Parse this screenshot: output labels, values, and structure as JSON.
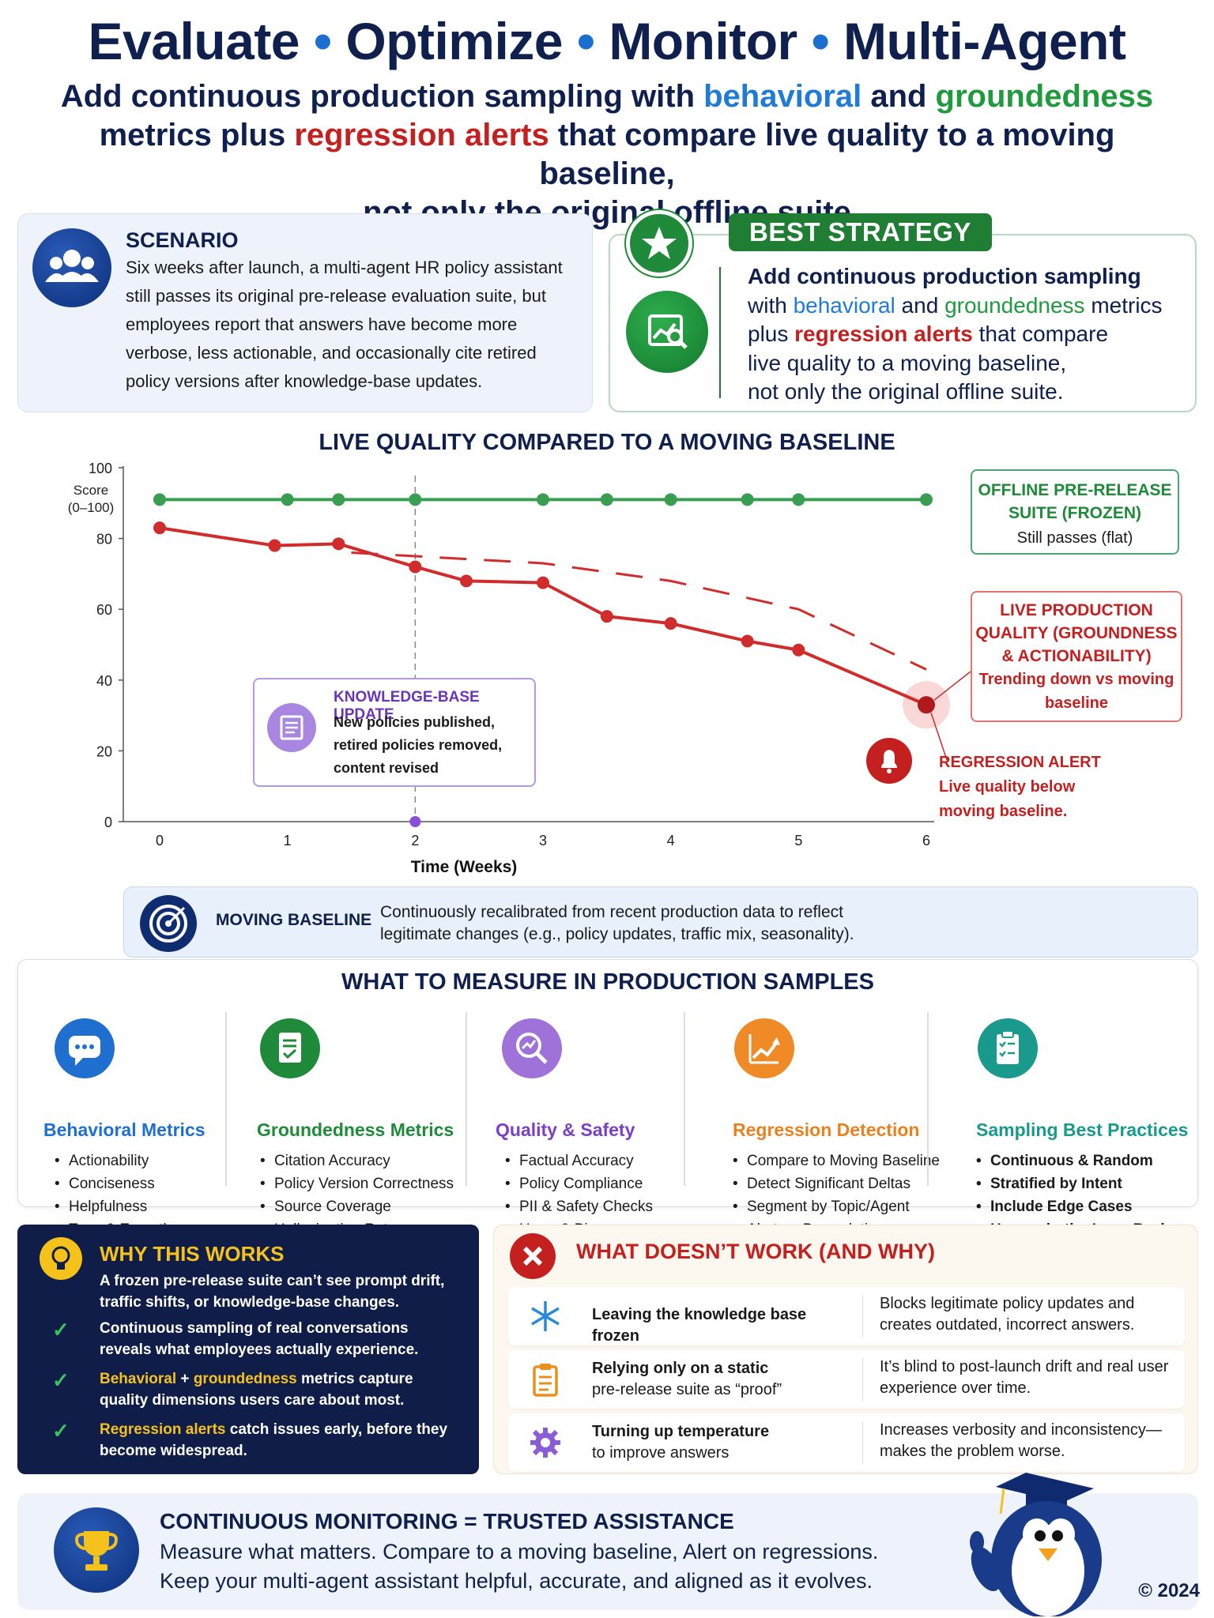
{
  "header": {
    "title_parts": [
      "Evaluate",
      "Optimize",
      "Monitor",
      "Multi-Agent"
    ],
    "title_sep": "•",
    "subtitle": {
      "p1": "Add continuous production sampling with ",
      "behavioral": "behavioral",
      "p2": " and ",
      "groundedness": "groundedness",
      "p3": "metrics plus ",
      "regression_alerts": "regression alerts",
      "p4": " that compare live quality to a moving baseline,",
      "p5": "not only the original offline suite"
    }
  },
  "scenario": {
    "heading": "SCENARIO",
    "icon": "users-icon",
    "body": "Six weeks after launch, a multi-agent HR policy assistant still passes its original pre-release evaluation suite, but employees report that answers have become more verbose, less actionable, and occasionally cite retired policy versions after knowledge-base updates."
  },
  "best_strategy": {
    "badge": "BEST STRATEGY",
    "star_icon": "star-icon",
    "icon": "chart-search-icon",
    "l1": "Add continuous production sampling",
    "l2a": "with ",
    "l2b": "behavioral",
    "l2c": " and ",
    "l2d": "groundedness",
    "l2e": " metrics",
    "l3a": "plus ",
    "l3b": "regression alerts",
    "l3c": " that compare",
    "l4": "live quality to a moving baseline,",
    "l5": "not only the original offline suite."
  },
  "chart_data": {
    "type": "line",
    "title": "LIVE QUALITY COMPARED TO A MOVING BASELINE",
    "xlabel": "Time (Weeks)",
    "ylabel": "Score (0–100)",
    "ylim": [
      0,
      100
    ],
    "xlim": [
      0,
      6
    ],
    "xticks": [
      0,
      1,
      2,
      3,
      4,
      5,
      6
    ],
    "yticks": [
      0,
      20,
      40,
      60,
      80,
      100
    ],
    "grid": false,
    "series": [
      {
        "name": "OFFLINE PRE-RELEASE SUITE (FROZEN)",
        "style": "solid",
        "color": "#3a9e52",
        "x": [
          0,
          1,
          1.4,
          2,
          3,
          3.5,
          4,
          4.6,
          5,
          6
        ],
        "y": [
          91,
          91,
          91,
          91,
          91,
          91,
          91,
          91,
          91,
          91
        ]
      },
      {
        "name": "LIVE PRODUCTION QUALITY (GROUNDNESS & ACTIONABILITY)",
        "style": "solid",
        "color": "#d12c2c",
        "x": [
          0,
          0.9,
          1.4,
          2,
          2.4,
          3,
          3.5,
          4,
          4.6,
          5,
          6
        ],
        "y": [
          83,
          78,
          78.5,
          72,
          68,
          67.5,
          58,
          56,
          51,
          48.5,
          33
        ]
      },
      {
        "name": "MOVING BASELINE",
        "style": "dashed",
        "color": "#d12c2c",
        "x": [
          1.5,
          3,
          4,
          5,
          6
        ],
        "y": [
          76,
          73,
          68,
          60,
          43
        ]
      }
    ],
    "annotations": {
      "offline": {
        "heading": "OFFLINE PRE-RELEASE SUITE (FROZEN)",
        "text": "Still passes (flat)"
      },
      "live": {
        "heading": "LIVE PRODUCTION QUALITY (GROUNDNESS & ACTIONABILITY)",
        "text": "Trending down vs moving baseline"
      },
      "kb": {
        "heading": "KNOWLEDGE-BASE UPDATE",
        "text": "New policies published, retired policies removed, content revised",
        "at_week": 2
      },
      "alert": {
        "heading": "REGRESSION ALERT",
        "text": "Live quality below moving baseline."
      }
    }
  },
  "moving_baseline": {
    "label": "MOVING BASELINE",
    "icon": "target-icon",
    "text": "Continuously recalibrated from recent production data to reflect legitimate changes (e.g., policy updates, traffic mix, seasonality)."
  },
  "measure": {
    "heading": "WHAT TO MEASURE IN PRODUCTION SAMPLES",
    "columns": [
      {
        "title": "Behavioral Metrics",
        "color": "#1f6fd1",
        "icon": "chat-bubble-icon",
        "items": [
          "Actionability",
          "Conciseness",
          "Helpfulness",
          "Tone & Empathy"
        ]
      },
      {
        "title": "Groundedness Metrics",
        "color": "#1f8a3a",
        "icon": "document-check-icon",
        "items": [
          "Citation Accuracy",
          "Policy Version Correctness",
          "Source Coverage",
          "Hallucination Rate"
        ]
      },
      {
        "title": "Quality & Safety",
        "color": "#7a3fc4",
        "icon": "magnifier-chart-icon",
        "items": [
          "Factual Accuracy",
          "Policy Compliance",
          "PII & Safety Checks",
          "Harm & Bias"
        ]
      },
      {
        "title": "Regression Detection",
        "color": "#e8821e",
        "icon": "trend-up-icon",
        "items": [
          "Compare to Moving Baseline",
          "Detect Significant Deltas",
          "Segment by Topic/Agent",
          "Alert on Degradation"
        ]
      },
      {
        "title": "Sampling Best Practices",
        "color": "#199a8c",
        "icon": "clipboard-checklist-icon",
        "items": [
          "Continuous & Random",
          "Stratified by Intent",
          "Include Edge Cases",
          "Human-in-the-Loop Review"
        ]
      }
    ]
  },
  "why": {
    "heading": "WHY THIS WORKS",
    "icon": "lightbulb-icon",
    "intro": "A frozen pre-release suite can’t see prompt drift, traffic shifts, or knowledge-base changes.",
    "r1": "Continuous sampling of real conversations reveals what employees actually experience.",
    "r2a": "Behavioral",
    "r2b": " + ",
    "r2c": "groundedness",
    "r2d": " metrics capture quality dimensions users care about most.",
    "r3a": "Regression alerts",
    "r3b": " catch issues early, before they become widespread."
  },
  "dont": {
    "heading": "WHAT DOESN’T WORK (AND WHY)",
    "icon": "x-circle-icon",
    "rows": [
      {
        "icon": "snowflake-icon",
        "left_b": "Leaving the knowledge base frozen",
        "left_n": "",
        "right": "Blocks legitimate policy updates and creates outdated, incorrect answers."
      },
      {
        "icon": "clipboard-icon",
        "left_b": "Relying only on a static",
        "left_n": "pre-release suite as “proof”",
        "right": "It’s blind to post-launch drift and real user experience over time."
      },
      {
        "icon": "gear-icon",
        "left_b": "Turning up temperature",
        "left_n": "to improve answers",
        "right": "Increases verbosity and inconsistency—makes the problem worse."
      }
    ]
  },
  "footer": {
    "heading": "CONTINUOUS MONITORING = TRUSTED ASSISTANCE",
    "icon": "trophy-icon",
    "line1": "Measure what matters. Compare to a moving baseline, Alert on regressions.",
    "line2": "Keep your multi-agent assistant helpful, accurate, and aligned as it evolves.",
    "copyright": "© 2024",
    "mascot": "penguin-graduate-icon"
  }
}
